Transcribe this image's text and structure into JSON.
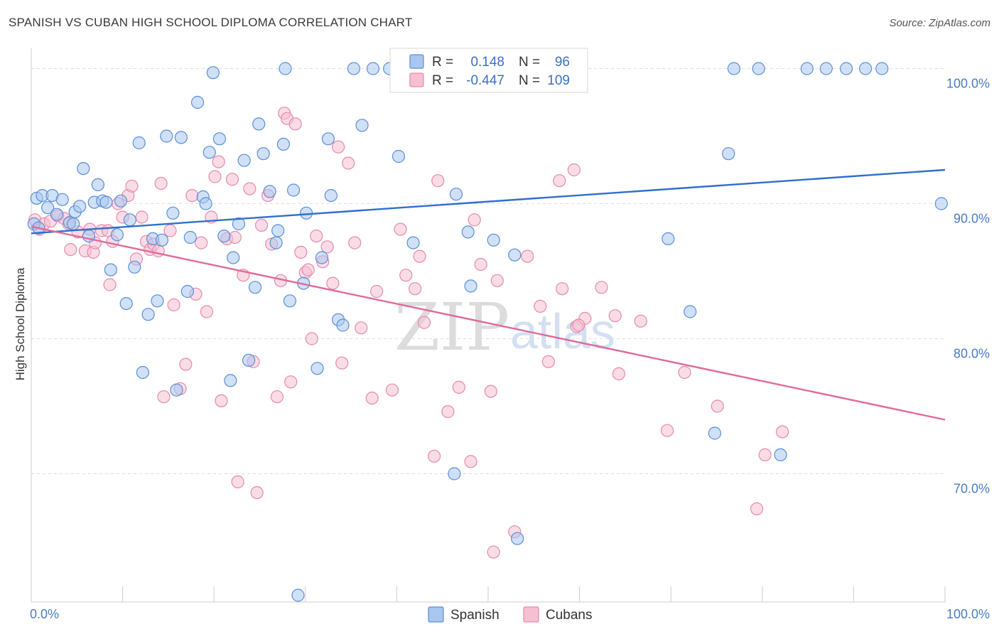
{
  "title": "SPANISH VS CUBAN HIGH SCHOOL DIPLOMA CORRELATION CHART",
  "source": "Source: ZipAtlas.com",
  "watermark": {
    "zip": "ZIP",
    "atlas": "atlas"
  },
  "colors": {
    "spanish_fill": "#a9c6ee",
    "spanish_stroke": "#5b8fd6",
    "spanish_line": "#2f6fcc",
    "cubans_fill": "#f6bfd2",
    "cubans_stroke": "#e68aac",
    "cubans_line": "#e06a98",
    "tick_text": "#4a7cc4",
    "grid": "#dddddd"
  },
  "stats": {
    "spanish": {
      "r_label": "R =",
      "r": "0.148",
      "n_label": "N =",
      "n": "96"
    },
    "cubans": {
      "r_label": "R =",
      "r": "-0.447",
      "n_label": "N =",
      "n": "109"
    }
  },
  "chart_data": {
    "type": "scatter",
    "title": "SPANISH VS CUBAN HIGH SCHOOL DIPLOMA CORRELATION CHART",
    "xlabel": "",
    "ylabel": "High School Diploma",
    "xlim": [
      0,
      100
    ],
    "ylim": [
      60.5,
      101.5
    ],
    "x_tick_labels": [
      {
        "value": 0,
        "label": "0.0%"
      },
      {
        "value": 100,
        "label": "100.0%"
      }
    ],
    "y_tick_labels": [
      {
        "value": 70,
        "label": "70.0%"
      },
      {
        "value": 80,
        "label": "80.0%"
      },
      {
        "value": 90,
        "label": "90.0%"
      },
      {
        "value": 100,
        "label": "100.0%"
      }
    ],
    "grid": "horizontal dashed",
    "legend": "bottom-center",
    "series": [
      {
        "name": "Spanish",
        "color": "#a9c6ee",
        "trend": {
          "x": [
            0,
            100
          ],
          "y": [
            87.8,
            92.5
          ]
        },
        "points": [
          [
            0.3,
            88.5
          ],
          [
            0.6,
            90.4
          ],
          [
            1.2,
            90.6
          ],
          [
            1.8,
            89.7
          ],
          [
            2.3,
            90.6
          ],
          [
            2.8,
            89.2
          ],
          [
            3.4,
            90.3
          ],
          [
            4.2,
            88.6
          ],
          [
            4.6,
            88.5
          ],
          [
            4.8,
            89.4
          ],
          [
            5.3,
            89.8
          ],
          [
            5.7,
            92.6
          ],
          [
            6.3,
            87.6
          ],
          [
            6.9,
            90.1
          ],
          [
            7.3,
            91.4
          ],
          [
            7.8,
            90.2
          ],
          [
            8.2,
            90.1
          ],
          [
            8.7,
            85.1
          ],
          [
            9.4,
            87.7
          ],
          [
            9.8,
            90.2
          ],
          [
            10.4,
            82.6
          ],
          [
            10.8,
            88.8
          ],
          [
            11.3,
            85.3
          ],
          [
            11.8,
            94.5
          ],
          [
            12.2,
            77.5
          ],
          [
            12.8,
            81.8
          ],
          [
            13.3,
            87.4
          ],
          [
            13.8,
            82.8
          ],
          [
            14.3,
            87.3
          ],
          [
            14.8,
            95.0
          ],
          [
            15.5,
            89.3
          ],
          [
            15.9,
            76.2
          ],
          [
            16.4,
            94.9
          ],
          [
            17.1,
            83.5
          ],
          [
            17.4,
            87.5
          ],
          [
            18.2,
            97.5
          ],
          [
            18.8,
            90.5
          ],
          [
            19.1,
            90.0
          ],
          [
            19.5,
            93.8
          ],
          [
            19.9,
            99.7
          ],
          [
            20.6,
            94.8
          ],
          [
            21.1,
            87.6
          ],
          [
            21.8,
            76.9
          ],
          [
            22.1,
            86.0
          ],
          [
            22.7,
            88.5
          ],
          [
            23.3,
            93.2
          ],
          [
            23.8,
            78.4
          ],
          [
            24.5,
            83.8
          ],
          [
            24.9,
            95.9
          ],
          [
            25.4,
            93.7
          ],
          [
            26.1,
            90.9
          ],
          [
            26.8,
            87.1
          ],
          [
            27.0,
            88.0
          ],
          [
            27.6,
            94.4
          ],
          [
            27.8,
            100.0
          ],
          [
            28.3,
            82.8
          ],
          [
            28.7,
            91.0
          ],
          [
            29.2,
            61.0
          ],
          [
            29.8,
            84.1
          ],
          [
            30.1,
            89.3
          ],
          [
            31.3,
            77.8
          ],
          [
            31.8,
            86.0
          ],
          [
            32.5,
            94.8
          ],
          [
            32.8,
            90.6
          ],
          [
            33.6,
            81.4
          ],
          [
            34.1,
            81.0
          ],
          [
            35.3,
            100.0
          ],
          [
            36.2,
            95.8
          ],
          [
            37.4,
            100.0
          ],
          [
            39.2,
            100.0
          ],
          [
            40.2,
            93.5
          ],
          [
            41.8,
            87.1
          ],
          [
            45.5,
            100.0
          ],
          [
            46.3,
            70.0
          ],
          [
            46.5,
            90.7
          ],
          [
            47.8,
            87.9
          ],
          [
            48.1,
            83.9
          ],
          [
            50.6,
            87.3
          ],
          [
            52.9,
            86.2
          ],
          [
            53.2,
            65.2
          ],
          [
            56.1,
            100.0
          ],
          [
            59.3,
            100.0
          ],
          [
            69.7,
            87.4
          ],
          [
            72.1,
            82.0
          ],
          [
            74.8,
            73.0
          ],
          [
            76.3,
            93.7
          ],
          [
            76.9,
            100.0
          ],
          [
            79.6,
            100.0
          ],
          [
            82.0,
            71.4
          ],
          [
            84.9,
            100.0
          ],
          [
            87.0,
            100.0
          ],
          [
            89.2,
            100.0
          ],
          [
            91.3,
            100.0
          ],
          [
            93.1,
            100.0
          ],
          [
            99.6,
            90.0
          ],
          [
            0.8,
            88.2
          ]
        ]
      },
      {
        "name": "Cubans",
        "color": "#f6bfd2",
        "trend": {
          "x": [
            0,
            100
          ],
          "y": [
            88.3,
            74.0
          ]
        },
        "points": [
          [
            0.4,
            88.8
          ],
          [
            0.9,
            88.1
          ],
          [
            1.4,
            88.5
          ],
          [
            2.1,
            88.7
          ],
          [
            2.9,
            89.1
          ],
          [
            3.6,
            88.9
          ],
          [
            4.1,
            88.5
          ],
          [
            4.3,
            86.6
          ],
          [
            5.1,
            87.9
          ],
          [
            5.9,
            86.5
          ],
          [
            6.4,
            88.1
          ],
          [
            6.8,
            86.4
          ],
          [
            7.0,
            87.1
          ],
          [
            7.7,
            88.0
          ],
          [
            8.4,
            88.0
          ],
          [
            8.6,
            84.0
          ],
          [
            8.9,
            87.2
          ],
          [
            9.5,
            90.0
          ],
          [
            10.0,
            89.0
          ],
          [
            10.6,
            90.6
          ],
          [
            11.0,
            91.3
          ],
          [
            11.5,
            85.9
          ],
          [
            12.1,
            89.0
          ],
          [
            12.6,
            87.2
          ],
          [
            13.0,
            86.6
          ],
          [
            13.4,
            87.0
          ],
          [
            13.9,
            86.5
          ],
          [
            14.2,
            91.5
          ],
          [
            14.5,
            75.7
          ],
          [
            15.2,
            88.0
          ],
          [
            15.6,
            82.5
          ],
          [
            16.3,
            76.3
          ],
          [
            16.9,
            78.1
          ],
          [
            17.6,
            90.6
          ],
          [
            18.0,
            83.3
          ],
          [
            18.6,
            87.1
          ],
          [
            19.2,
            82.0
          ],
          [
            19.7,
            89.0
          ],
          [
            20.1,
            92.0
          ],
          [
            20.5,
            93.1
          ],
          [
            20.8,
            75.4
          ],
          [
            21.4,
            87.4
          ],
          [
            22.0,
            91.8
          ],
          [
            22.3,
            87.5
          ],
          [
            22.6,
            69.4
          ],
          [
            23.2,
            84.7
          ],
          [
            23.9,
            91.1
          ],
          [
            24.3,
            78.3
          ],
          [
            24.7,
            68.6
          ],
          [
            25.2,
            88.4
          ],
          [
            25.9,
            90.6
          ],
          [
            26.3,
            87.0
          ],
          [
            26.9,
            75.7
          ],
          [
            27.3,
            84.3
          ],
          [
            27.7,
            96.7
          ],
          [
            28.0,
            96.3
          ],
          [
            28.4,
            76.8
          ],
          [
            28.9,
            95.9
          ],
          [
            29.5,
            86.4
          ],
          [
            30.0,
            84.9
          ],
          [
            30.3,
            85.1
          ],
          [
            30.7,
            80.0
          ],
          [
            31.2,
            87.6
          ],
          [
            31.9,
            85.7
          ],
          [
            32.4,
            86.8
          ],
          [
            33.0,
            84.1
          ],
          [
            33.6,
            94.2
          ],
          [
            34.0,
            78.2
          ],
          [
            34.7,
            93.0
          ],
          [
            35.4,
            87.1
          ],
          [
            36.1,
            80.8
          ],
          [
            37.3,
            75.6
          ],
          [
            37.8,
            83.5
          ],
          [
            39.5,
            76.2
          ],
          [
            40.4,
            88.1
          ],
          [
            41.0,
            84.7
          ],
          [
            42.0,
            83.7
          ],
          [
            42.5,
            86.1
          ],
          [
            43.0,
            81.2
          ],
          [
            44.1,
            71.3
          ],
          [
            44.5,
            91.7
          ],
          [
            45.6,
            74.6
          ],
          [
            46.8,
            76.4
          ],
          [
            48.1,
            70.9
          ],
          [
            48.5,
            88.8
          ],
          [
            49.2,
            85.5
          ],
          [
            50.3,
            76.1
          ],
          [
            51.0,
            84.3
          ],
          [
            52.9,
            65.7
          ],
          [
            54.3,
            86.1
          ],
          [
            55.7,
            82.4
          ],
          [
            56.6,
            78.3
          ],
          [
            58.1,
            83.7
          ],
          [
            59.4,
            92.5
          ],
          [
            59.7,
            80.9
          ],
          [
            60.6,
            81.5
          ],
          [
            62.4,
            83.8
          ],
          [
            63.9,
            81.7
          ],
          [
            64.3,
            77.4
          ],
          [
            66.7,
            81.3
          ],
          [
            69.6,
            73.2
          ],
          [
            71.5,
            77.5
          ],
          [
            75.1,
            75.0
          ],
          [
            79.4,
            67.4
          ],
          [
            80.3,
            71.4
          ],
          [
            82.2,
            73.1
          ],
          [
            57.8,
            91.7
          ],
          [
            50.6,
            64.2
          ],
          [
            59.9,
            81.0
          ]
        ]
      }
    ]
  },
  "legend": {
    "items": [
      {
        "label": "Spanish"
      },
      {
        "label": "Cubans"
      }
    ]
  }
}
